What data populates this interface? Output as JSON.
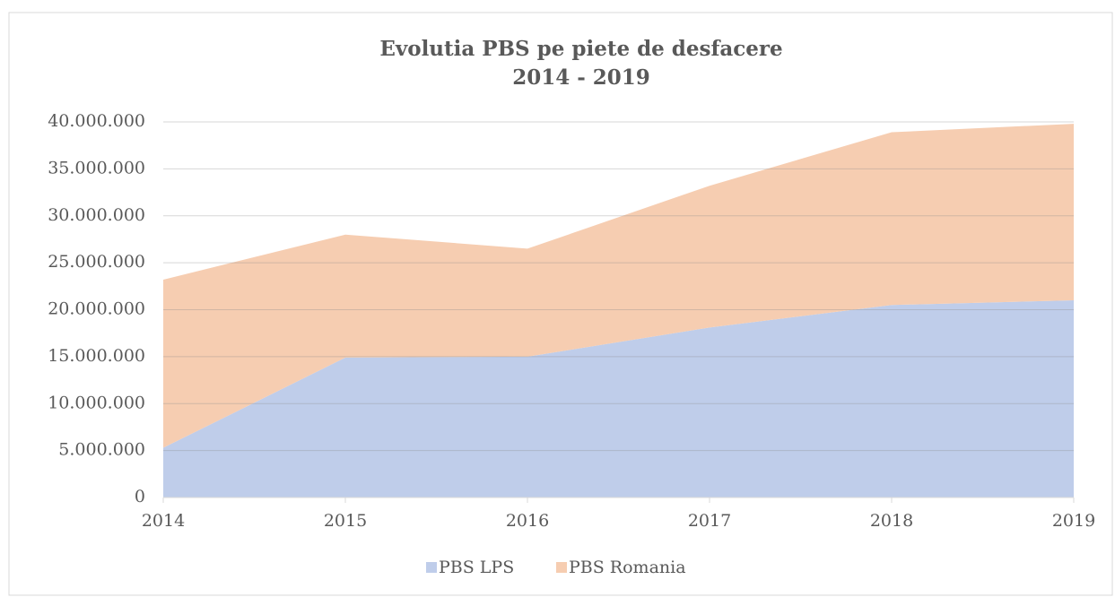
{
  "chart_data": {
    "type": "stacked_area",
    "title": "Evolutia PBS pe piete de desfacere",
    "subtitle": "2014 - 2019",
    "categories": [
      "2014",
      "2015",
      "2016",
      "2017",
      "2018",
      "2019"
    ],
    "series": [
      {
        "name": "PBS LPS",
        "color": "#bfcdea",
        "values": [
          5300000,
          14900000,
          15000000,
          18100000,
          20500000,
          21000000
        ]
      },
      {
        "name": "PBS Romania",
        "color": "#f6cdb1",
        "values": [
          17900000,
          13100000,
          11500000,
          15100000,
          18400000,
          18800000
        ]
      }
    ],
    "ylim": [
      0,
      40000000
    ],
    "yticks": [
      0,
      {
        "value": 5000000,
        "label": "5.000.000"
      },
      {
        "value": 10000000,
        "label": "10.000.000"
      },
      {
        "value": 15000000,
        "label": "15.000.000"
      },
      {
        "value": 20000000,
        "label": "20.000.000"
      },
      {
        "value": 25000000,
        "label": "25.000.000"
      },
      {
        "value": 30000000,
        "label": "30.000.000"
      },
      {
        "value": 35000000,
        "label": "35.000.000"
      },
      {
        "value": 40000000,
        "label": "40.000.000"
      }
    ],
    "grid": true,
    "legend": "bottom"
  }
}
